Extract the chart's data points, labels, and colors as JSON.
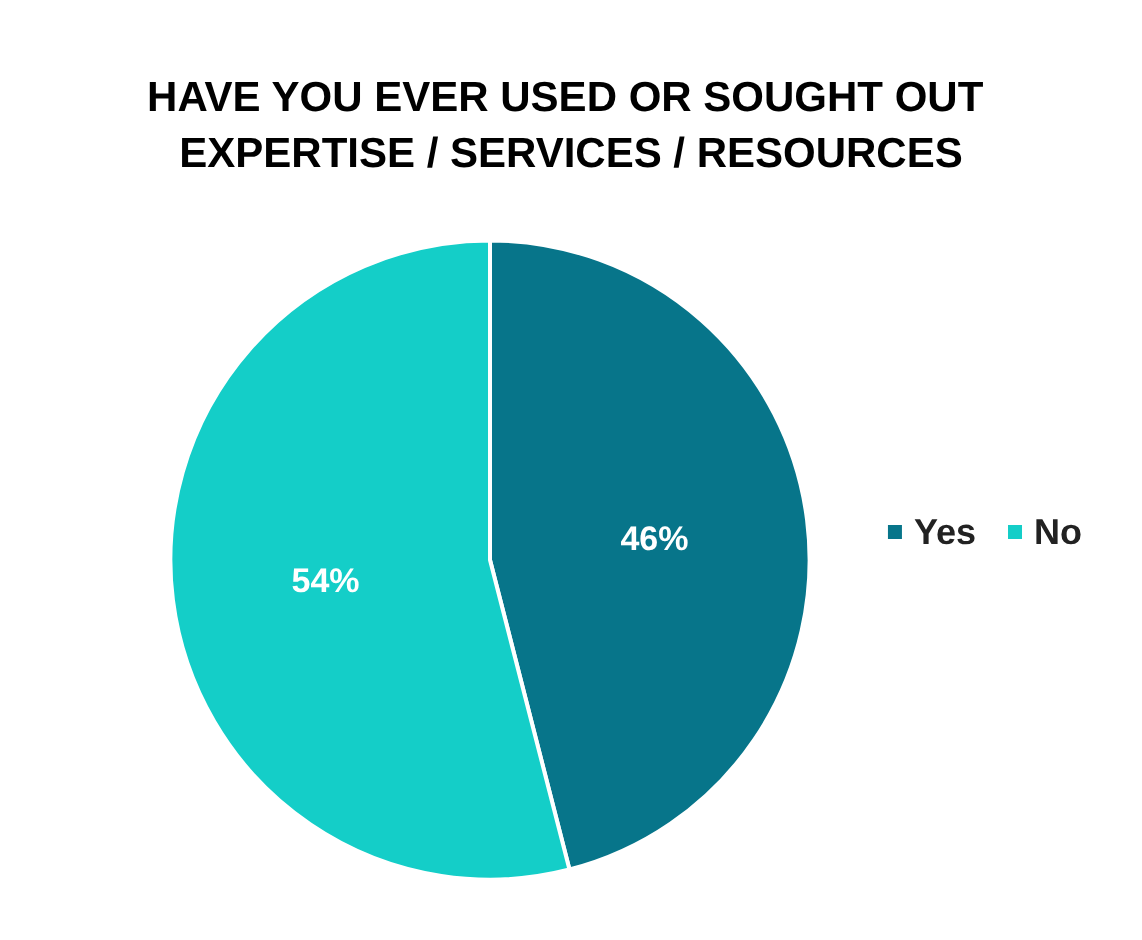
{
  "chart_data": {
    "type": "pie",
    "title": "HAVE YOU EVER USED OR SOUGHT OUT EXPERTISE / SERVICES / RESOURCES",
    "categories": [
      "Yes",
      "No"
    ],
    "values": [
      46,
      54
    ],
    "colors": [
      "#07758a",
      "#14cec8"
    ],
    "value_labels": [
      "46%",
      "54%"
    ],
    "legend": "right"
  }
}
